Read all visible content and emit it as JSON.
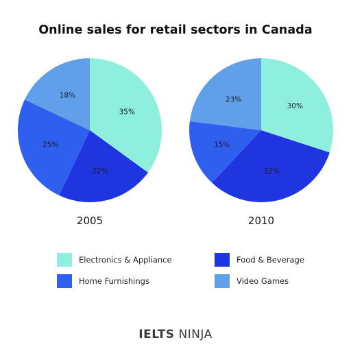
{
  "title": "Online sales for retail sectors in Canada",
  "colors": {
    "electronics": "#8ef0dc",
    "food": "#1f35e0",
    "home": "#2f5fee",
    "video": "#5fa0e8"
  },
  "legend": [
    {
      "key": "electronics",
      "label": "Electronics & Appliance",
      "color": "#8ef0dc"
    },
    {
      "key": "food",
      "label": "Food & Beverage",
      "color": "#1f35e0"
    },
    {
      "key": "home",
      "label": "Home Furnishings",
      "color": "#2f5fee"
    },
    {
      "key": "video",
      "label": "Video Games",
      "color": "#5fa0e8"
    }
  ],
  "chart_data": [
    {
      "type": "pie",
      "title": "2005",
      "slices": [
        {
          "label": "Electronics & Appliance",
          "value": 35,
          "display": "35%",
          "color": "#8ef0dc"
        },
        {
          "label": "Food & Beverage",
          "value": 22,
          "display": "22%",
          "color": "#1f35e0"
        },
        {
          "label": "Home Furnishings",
          "value": 25,
          "display": "25%",
          "color": "#2f5fee"
        },
        {
          "label": "Video Games",
          "value": 18,
          "display": "18%",
          "color": "#5fa0e8"
        }
      ]
    },
    {
      "type": "pie",
      "title": "2010",
      "slices": [
        {
          "label": "Electronics & Appliance",
          "value": 30,
          "display": "30%",
          "color": "#8ef0dc"
        },
        {
          "label": "Food & Beverage",
          "value": 32,
          "display": "32%",
          "color": "#1f35e0"
        },
        {
          "label": "Home Furnishings",
          "value": 15,
          "display": "15%",
          "color": "#2f5fee"
        },
        {
          "label": "Video Games",
          "value": 23,
          "display": "23%",
          "color": "#5fa0e8"
        }
      ]
    }
  ],
  "brand": {
    "part1": "IELTS",
    "part2": "NINJA"
  }
}
